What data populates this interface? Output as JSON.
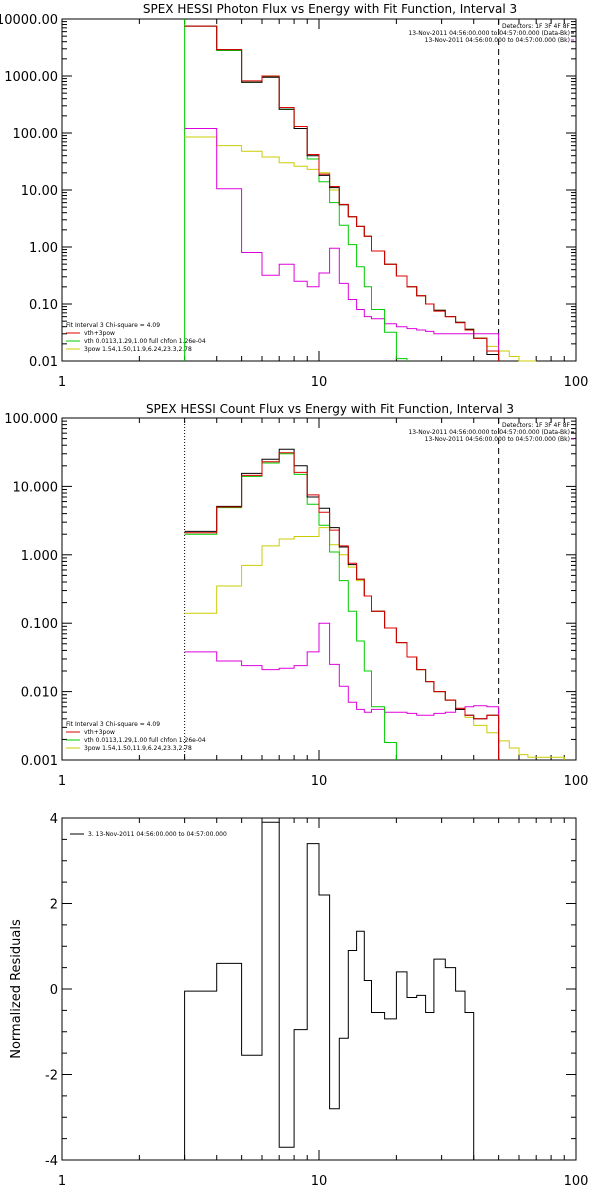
{
  "colors": {
    "data": "#000000",
    "total": "#dd0000",
    "thermal": "#00cc00",
    "powerlaw": "#cccc00",
    "background": "#dd00dd"
  },
  "chart_data": [
    {
      "type": "line",
      "title": "SPEX HESSI Photon Flux vs Energy with Fit Function, Interval 3",
      "x_scale": "log",
      "y_scale": "log",
      "xlim": [
        1,
        100
      ],
      "ylim": [
        0.01,
        10000
      ],
      "x_ticks": [
        "1",
        "10",
        "100"
      ],
      "x_tick_values": [
        1,
        10,
        100
      ],
      "y_ticks": [
        "10000.00",
        "1000.00",
        "100.00",
        "10.00",
        "1.00",
        "0.10",
        "0.01"
      ],
      "y_tick_values": [
        10000,
        1000,
        100,
        10,
        1,
        0.1,
        0.01
      ],
      "vlines": [
        {
          "x": 3,
          "style": "solid",
          "color": "#00cc00"
        },
        {
          "x": 50,
          "style": "dashed",
          "color": "#000000"
        }
      ],
      "header_lines": [
        "Detectors: 1F 3F 4F 8F",
        "13-Nov-2011 04:56:00.000 to 04:57:00.000 (Data-Bk)",
        "13-Nov-2011 04:56:00.000 to 04:57:00.000 (Bk)"
      ],
      "legend": [
        "Fit Interval 3   Chi-square = 4.09",
        "vth+3pow",
        "vth 0.0113,1.29,1.00  full chfon 1.26e-04",
        "3pow 1.54,1.50,11.9,6.24,23.3,2.78"
      ],
      "edges": [
        3,
        4,
        5,
        6,
        7,
        8,
        9,
        10,
        11,
        12,
        13,
        14,
        15,
        16,
        18,
        20,
        22,
        24,
        26,
        28,
        31,
        34,
        37,
        40,
        45,
        50,
        55,
        60,
        65,
        70
      ],
      "series": [
        {
          "name": "Data-Bk",
          "key": "data",
          "values": [
            7500,
            2900,
            780,
            950,
            260,
            120,
            40,
            18,
            11,
            5.5,
            3.4,
            2.3,
            1.55,
            0.85,
            0.5,
            0.31,
            0.2,
            0.14,
            0.1,
            0.078,
            0.06,
            0.048,
            0.036,
            0.025,
            0.013,
            null,
            null,
            null,
            null
          ]
        },
        {
          "name": "vth+3pow",
          "key": "total",
          "values": [
            7500,
            2900,
            820,
            1000,
            280,
            130,
            42,
            19,
            11.5,
            5.6,
            3.4,
            2.3,
            1.55,
            0.85,
            0.5,
            0.31,
            0.2,
            0.14,
            0.1,
            0.075,
            0.06,
            0.047,
            0.035,
            0.025,
            0.015,
            null,
            null,
            null,
            null
          ]
        },
        {
          "name": "vth",
          "key": "thermal",
          "values": [
            7500,
            2800,
            780,
            960,
            260,
            120,
            35,
            14,
            6,
            2.4,
            1.1,
            0.45,
            0.2,
            0.08,
            0.032,
            0.011,
            null,
            null,
            null,
            null,
            null,
            null,
            null,
            null,
            null,
            null,
            null,
            null,
            null
          ]
        },
        {
          "name": "3pow",
          "key": "powerlaw",
          "values": [
            85,
            60,
            48,
            38,
            30,
            26,
            23,
            20,
            10,
            5.5,
            3.4,
            2.3,
            1.55,
            0.85,
            0.5,
            0.31,
            0.2,
            0.14,
            0.1,
            0.078,
            0.06,
            0.048,
            0.036,
            0.025,
            0.018,
            0.015,
            0.012,
            0.01,
            0.009
          ]
        },
        {
          "name": "Bk",
          "key": "background",
          "values": [
            120,
            10.5,
            0.8,
            0.32,
            0.5,
            0.25,
            0.2,
            0.35,
            0.95,
            0.23,
            0.12,
            0.08,
            0.06,
            0.055,
            0.045,
            0.04,
            0.037,
            0.035,
            0.033,
            0.03,
            0.03,
            0.03,
            0.03,
            0.03,
            0.03,
            null,
            null,
            null,
            null
          ]
        }
      ]
    },
    {
      "type": "line",
      "title": "SPEX HESSI Count Flux vs Energy with Fit Function, Interval 3",
      "x_scale": "log",
      "y_scale": "log",
      "xlim": [
        1,
        100
      ],
      "ylim": [
        0.001,
        100
      ],
      "x_ticks": [
        "1",
        "10",
        "100"
      ],
      "x_tick_values": [
        1,
        10,
        100
      ],
      "y_ticks": [
        "100.000",
        "10.000",
        "1.000",
        "0.100",
        "0.010",
        "0.001"
      ],
      "y_tick_values": [
        100,
        10,
        1,
        0.1,
        0.01,
        0.001
      ],
      "vlines": [
        {
          "x": 3,
          "style": "dotted",
          "color": "#000000"
        },
        {
          "x": 50,
          "style": "dashed",
          "color": "#000000"
        }
      ],
      "header_lines": [
        "Detectors: 1F 3F 4F 8F",
        "13-Nov-2011 04:56:00.000 to 04:57:00.000 (Data-Bk)",
        "13-Nov-2011 04:56:00.000 to 04:57:00.000 (Bk)"
      ],
      "legend": [
        "Fit Interval 3   Chi-square = 4.09",
        "vth+3pow",
        "vth 0.0113,1.29,1.00  full chfon 1.26e-04",
        "3pow 1.54,1.50,11.9,6.24,23.3,2.78"
      ],
      "edges": [
        3,
        4,
        5,
        6,
        7,
        8,
        9,
        10,
        11,
        12,
        13,
        14,
        15,
        16,
        18,
        20,
        22,
        24,
        26,
        28,
        31,
        34,
        37,
        40,
        45,
        50,
        55,
        60,
        65,
        70,
        80,
        90
      ],
      "series": [
        {
          "name": "Data-Bk",
          "key": "data",
          "values": [
            2.2,
            5.1,
            15.5,
            25,
            35,
            20,
            7,
            4.8,
            2.5,
            1.3,
            0.72,
            0.44,
            0.25,
            0.15,
            0.085,
            0.052,
            0.032,
            0.021,
            0.014,
            0.01,
            0.0075,
            0.0055,
            0.0045,
            0.004,
            0.0045,
            null,
            null,
            null,
            null,
            null,
            null
          ]
        },
        {
          "name": "vth+3pow",
          "key": "total",
          "values": [
            2.1,
            5.0,
            14.5,
            23,
            31,
            16,
            7.5,
            4.2,
            2.3,
            1.35,
            0.75,
            0.44,
            0.25,
            0.15,
            0.085,
            0.052,
            0.032,
            0.021,
            0.014,
            0.01,
            0.0075,
            0.0057,
            0.0045,
            0.004,
            0.0045,
            null,
            null,
            null,
            null,
            null,
            null
          ]
        },
        {
          "name": "vth",
          "key": "thermal",
          "values": [
            2.0,
            4.9,
            14,
            22,
            30,
            15,
            5.5,
            2.7,
            1.1,
            0.42,
            0.15,
            0.055,
            0.02,
            0.006,
            0.0018,
            null,
            null,
            null,
            null,
            null,
            null,
            null,
            null,
            null,
            null,
            null,
            null,
            null,
            null,
            null,
            null
          ]
        },
        {
          "name": "3pow",
          "key": "powerlaw",
          "values": [
            0.14,
            0.35,
            0.7,
            1.35,
            1.7,
            1.85,
            1.85,
            2.5,
            1.4,
            1.0,
            0.66,
            0.42,
            0.25,
            0.15,
            0.085,
            0.052,
            0.032,
            0.021,
            0.014,
            0.01,
            0.0075,
            0.0055,
            0.0042,
            0.0032,
            0.0025,
            0.0019,
            0.0015,
            0.0012,
            0.0011,
            0.0011,
            0.0011
          ]
        },
        {
          "name": "Bk",
          "key": "background",
          "values": [
            0.038,
            0.028,
            0.024,
            0.021,
            0.022,
            0.024,
            0.038,
            0.1,
            0.025,
            0.012,
            0.007,
            0.0055,
            0.005,
            0.0055,
            0.005,
            0.005,
            0.0048,
            0.0045,
            0.0045,
            0.0048,
            0.005,
            0.0055,
            0.006,
            0.0062,
            0.006,
            null,
            null,
            null,
            null,
            null,
            null
          ]
        }
      ]
    },
    {
      "type": "line",
      "title": "",
      "ylabel": "Normalized Residuals",
      "x_scale": "log",
      "y_scale": "linear",
      "xlim": [
        1,
        100
      ],
      "ylim": [
        -4,
        4
      ],
      "x_ticks": [
        "1",
        "10",
        "100"
      ],
      "x_tick_values": [
        1,
        10,
        100
      ],
      "y_ticks": [
        "4",
        "2",
        "0",
        "-2",
        "-4"
      ],
      "y_tick_values": [
        4,
        2,
        0,
        -2,
        -4
      ],
      "legend": [
        "3. 13-Nov-2011 04:56:00.000 to 04:57:00.000"
      ],
      "edges": [
        3,
        4,
        5,
        6,
        7,
        8,
        9,
        10,
        11,
        12,
        13,
        14,
        15,
        16,
        18,
        20,
        22,
        24,
        26,
        28,
        31,
        34,
        37,
        40,
        45,
        50
      ],
      "series": [
        {
          "name": "3. 13-Nov-2011 04:56:00.000 to 04:57:00.000",
          "key": "data",
          "values": [
            -0.05,
            0.6,
            -1.55,
            3.9,
            -3.7,
            -0.95,
            3.4,
            2.2,
            -2.8,
            -1.15,
            0.9,
            1.35,
            0.2,
            -0.55,
            -0.7,
            0.4,
            -0.2,
            -0.15,
            -0.55,
            0.7,
            0.5,
            -0.05,
            -0.55,
            null,
            null
          ]
        }
      ]
    }
  ]
}
